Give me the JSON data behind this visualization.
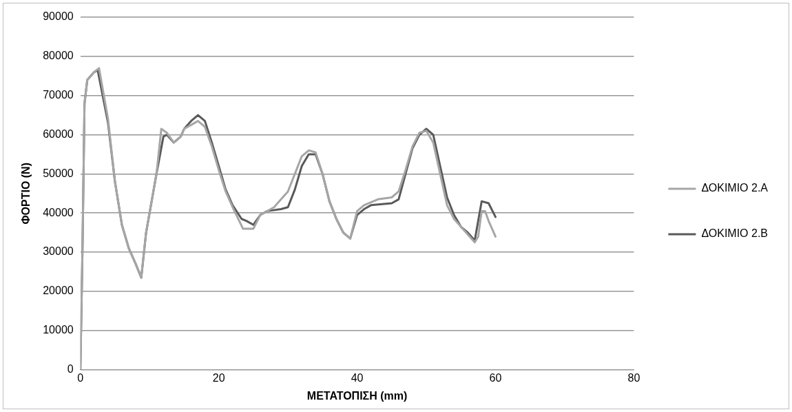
{
  "chart_data": {
    "type": "line",
    "xlabel": "ΜΕΤΑΤΟΠΙΣΗ (mm)",
    "ylabel": "ΦΟΡΤΙΟ (N)",
    "xlim": [
      0,
      80
    ],
    "xticks": [
      0,
      20,
      40,
      60,
      80
    ],
    "ylim": [
      0,
      90000
    ],
    "yticks": [
      0,
      10000,
      20000,
      30000,
      40000,
      50000,
      60000,
      70000,
      80000,
      90000
    ],
    "grid": "y",
    "legend": "right",
    "marker": "none",
    "line_style": "solid",
    "series": [
      {
        "name": "ΔΟΚΙΜΙΟ 2.Α",
        "color": "#a6a6a6",
        "x": [
          0,
          0.3,
          0.6,
          1,
          2,
          2.7,
          4,
          5,
          6,
          7,
          8,
          8.8,
          9.5,
          11,
          11.7,
          12.5,
          13.5,
          14.5,
          15,
          16,
          17,
          18,
          19,
          20,
          21,
          22,
          23.5,
          25,
          26,
          28,
          29,
          30,
          31,
          32,
          33,
          34,
          35,
          36,
          37,
          38,
          39,
          40,
          41,
          43,
          45,
          46,
          47,
          48,
          49,
          50,
          51,
          52,
          53,
          54,
          55,
          56,
          57,
          57.5,
          58,
          58.5,
          59,
          60
        ],
        "values": [
          0,
          30000,
          68000,
          74000,
          76000,
          77000,
          64000,
          48000,
          37000,
          31000,
          27000,
          23500,
          35000,
          50000,
          61500,
          60500,
          58000,
          59500,
          61500,
          62500,
          63500,
          62000,
          57000,
          51000,
          45500,
          41500,
          36000,
          36000,
          39500,
          41500,
          43500,
          45500,
          50000,
          54500,
          56000,
          55500,
          50000,
          43000,
          38500,
          35000,
          33500,
          40500,
          42000,
          43500,
          44000,
          45500,
          51000,
          57000,
          60500,
          61000,
          58000,
          50000,
          42000,
          38500,
          36500,
          34500,
          32500,
          34000,
          40500,
          40500,
          38000,
          34000
        ]
      },
      {
        "name": "ΔΟΚΙΜΙΟ 2.Β",
        "color": "#595959",
        "x": [
          0,
          0.3,
          0.6,
          1,
          2,
          2.5,
          4,
          5,
          6,
          7,
          8,
          8.8,
          9.5,
          11,
          12,
          12.5,
          13.5,
          14.5,
          15,
          16,
          17,
          18,
          19,
          20,
          21,
          22,
          23.3,
          24,
          25,
          26,
          27,
          29,
          30,
          31,
          32,
          33,
          34,
          35,
          36,
          37,
          38,
          39,
          40,
          41,
          42,
          45,
          46,
          47,
          48,
          49,
          50,
          51,
          52,
          53,
          54,
          55,
          56,
          57,
          57.5,
          58,
          59,
          60
        ],
        "values": [
          0,
          30000,
          68000,
          74000,
          76000,
          76500,
          63000,
          48000,
          37000,
          31000,
          27000,
          23500,
          35000,
          50000,
          59500,
          60000,
          58000,
          59500,
          61500,
          63500,
          65000,
          63500,
          58000,
          52000,
          46000,
          42000,
          38500,
          38000,
          37000,
          39500,
          40500,
          41000,
          41500,
          46000,
          52000,
          55000,
          55000,
          50000,
          43000,
          38500,
          35000,
          33500,
          39500,
          41000,
          42000,
          42500,
          43500,
          50000,
          56500,
          60000,
          61500,
          60000,
          52000,
          44000,
          39500,
          36500,
          35000,
          33000,
          38000,
          43000,
          42500,
          39000
        ]
      }
    ]
  }
}
